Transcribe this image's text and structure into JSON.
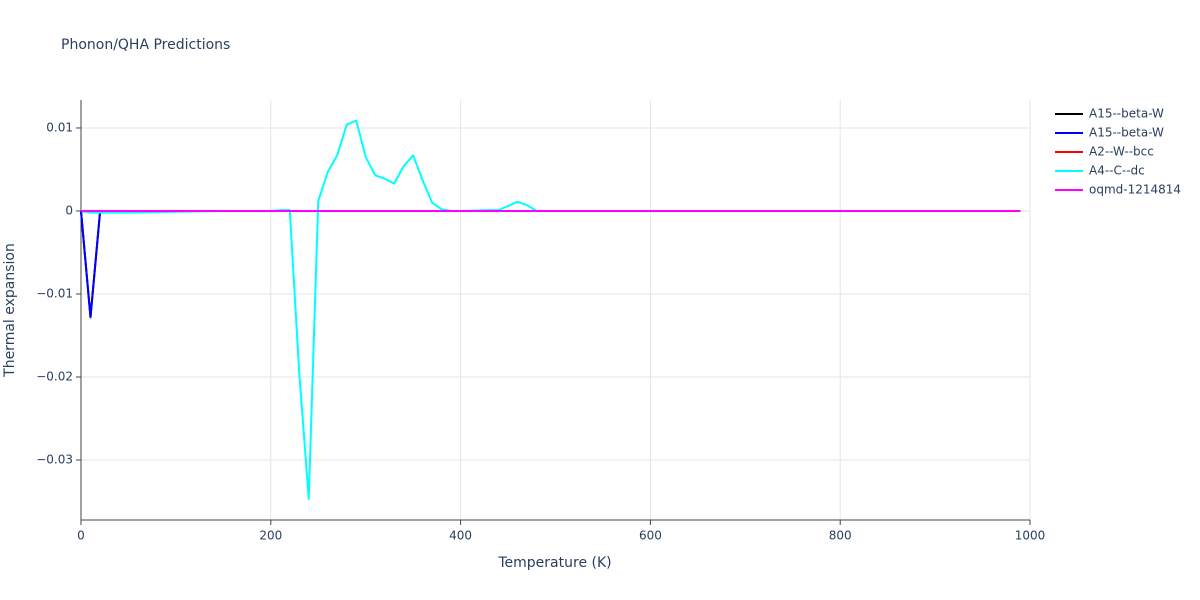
{
  "chart_data": {
    "type": "line",
    "title": "Phonon/QHA Predictions",
    "x_label": "Temperature (K)",
    "y_label": "Thermal expansion",
    "xlim": [
      0,
      1000
    ],
    "xticks": [
      0,
      200,
      400,
      600,
      800,
      1000
    ],
    "ylim": [
      -0.03723,
      0.01337
    ],
    "yticks": [
      {
        "value": -0.03,
        "label": "−0.03"
      },
      {
        "value": -0.02,
        "label": "−0.02"
      },
      {
        "value": -0.01,
        "label": "−0.01"
      },
      0,
      0.01
    ],
    "grid": true,
    "legend": "right",
    "series": [
      {
        "name": "A15--beta-W",
        "color": "#000000",
        "x": [
          0,
          10,
          20,
          30,
          100,
          500,
          990
        ],
        "values": [
          0,
          -0.0128,
          -0.0002,
          0,
          0,
          0,
          0
        ]
      },
      {
        "name": "A15--beta-W",
        "color": "#0000ff",
        "x": [
          0,
          10,
          20,
          30,
          100,
          500,
          990
        ],
        "values": [
          0,
          -0.0128,
          -0.0002,
          0,
          0,
          0,
          0
        ]
      },
      {
        "name": "A2--W--bcc",
        "color": "#ff0000",
        "x": [
          0,
          100,
          500,
          990
        ],
        "values": [
          0,
          0,
          0,
          0
        ]
      },
      {
        "name": "A4--C--dc",
        "color": "#00ffff",
        "x": [
          0,
          10,
          50,
          100,
          150,
          200,
          210,
          220,
          230,
          240,
          250,
          260,
          270,
          280,
          290,
          300,
          310,
          320,
          330,
          340,
          350,
          360,
          370,
          380,
          390,
          400,
          430,
          440,
          450,
          460,
          470,
          480,
          500,
          600,
          700,
          800,
          900,
          990
        ],
        "values": [
          0,
          -0.0002,
          -0.0002,
          -0.0001,
          0,
          0,
          0.0001,
          0.0001,
          -0.0195,
          -0.0347,
          0.0012,
          0.0047,
          0.0067,
          0.0104,
          0.0109,
          0.0065,
          0.0043,
          0.0039,
          0.0033,
          0.0054,
          0.0067,
          0.0037,
          0.001,
          0.0002,
          0,
          0,
          0.0001,
          0.0001,
          0.0006,
          0.0011,
          0.0007,
          0,
          0,
          0,
          0,
          0,
          0,
          0
        ]
      },
      {
        "name": "oqmd-1214814",
        "color": "#ff00ff",
        "x": [
          0,
          990
        ],
        "values": [
          0,
          0
        ]
      }
    ]
  }
}
